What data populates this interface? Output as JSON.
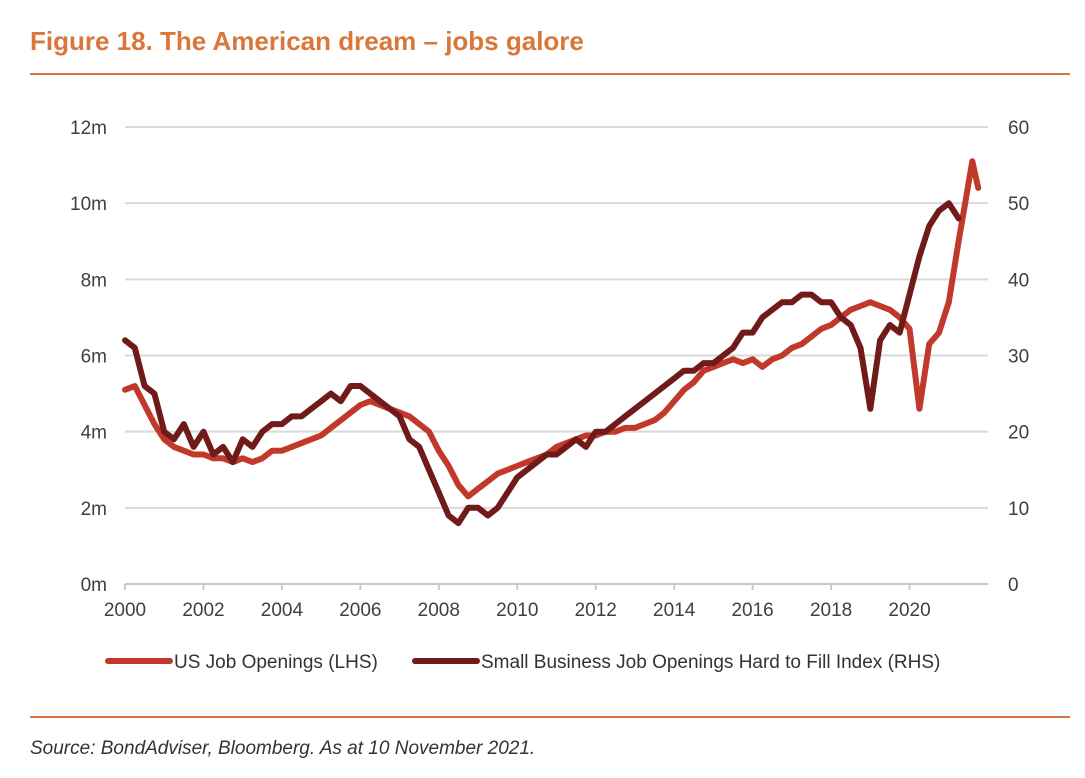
{
  "header": {
    "title": "Figure 18. The American dream – jobs galore"
  },
  "footer": {
    "source": "Source: BondAdviser, Bloomberg. As at 10 November 2021."
  },
  "chart_data": {
    "type": "line",
    "title": "Figure 18. The American dream – jobs galore",
    "xlim": [
      2000,
      2022
    ],
    "x_ticks": [
      "2000",
      "2002",
      "2004",
      "2006",
      "2008",
      "2010",
      "2012",
      "2014",
      "2016",
      "2018",
      "2020"
    ],
    "y_left": {
      "label": "US Job Openings (LHS)",
      "lim": [
        0,
        12
      ],
      "ticks": [
        "0m",
        "2m",
        "4m",
        "6m",
        "8m",
        "10m",
        "12m"
      ]
    },
    "y_right": {
      "label": "Small Business Job Openings Hard to Fill Index (RHS)",
      "lim": [
        0,
        60
      ],
      "ticks": [
        "0",
        "10",
        "20",
        "30",
        "40",
        "50",
        "60"
      ]
    },
    "grid": true,
    "legend_position": "bottom",
    "series": [
      {
        "name": "US Job Openings (LHS)",
        "axis": "left",
        "color": "#c0392b",
        "points": [
          [
            2000.0,
            5.1
          ],
          [
            2000.25,
            5.2
          ],
          [
            2000.5,
            4.7
          ],
          [
            2000.75,
            4.2
          ],
          [
            2001.0,
            3.8
          ],
          [
            2001.25,
            3.6
          ],
          [
            2001.5,
            3.5
          ],
          [
            2001.75,
            3.4
          ],
          [
            2002.0,
            3.4
          ],
          [
            2002.25,
            3.3
          ],
          [
            2002.5,
            3.3
          ],
          [
            2002.75,
            3.2
          ],
          [
            2003.0,
            3.3
          ],
          [
            2003.25,
            3.2
          ],
          [
            2003.5,
            3.3
          ],
          [
            2003.75,
            3.5
          ],
          [
            2004.0,
            3.5
          ],
          [
            2004.25,
            3.6
          ],
          [
            2004.5,
            3.7
          ],
          [
            2004.75,
            3.8
          ],
          [
            2005.0,
            3.9
          ],
          [
            2005.25,
            4.1
          ],
          [
            2005.5,
            4.3
          ],
          [
            2005.75,
            4.5
          ],
          [
            2006.0,
            4.7
          ],
          [
            2006.25,
            4.8
          ],
          [
            2006.5,
            4.7
          ],
          [
            2006.75,
            4.6
          ],
          [
            2007.0,
            4.5
          ],
          [
            2007.25,
            4.4
          ],
          [
            2007.5,
            4.2
          ],
          [
            2007.75,
            4.0
          ],
          [
            2008.0,
            3.5
          ],
          [
            2008.25,
            3.1
          ],
          [
            2008.5,
            2.6
          ],
          [
            2008.75,
            2.3
          ],
          [
            2009.0,
            2.5
          ],
          [
            2009.25,
            2.7
          ],
          [
            2009.5,
            2.9
          ],
          [
            2009.75,
            3.0
          ],
          [
            2010.0,
            3.1
          ],
          [
            2010.25,
            3.2
          ],
          [
            2010.5,
            3.3
          ],
          [
            2010.75,
            3.4
          ],
          [
            2011.0,
            3.6
          ],
          [
            2011.25,
            3.7
          ],
          [
            2011.5,
            3.8
          ],
          [
            2011.75,
            3.9
          ],
          [
            2012.0,
            3.9
          ],
          [
            2012.25,
            4.0
          ],
          [
            2012.5,
            4.0
          ],
          [
            2012.75,
            4.1
          ],
          [
            2013.0,
            4.1
          ],
          [
            2013.25,
            4.2
          ],
          [
            2013.5,
            4.3
          ],
          [
            2013.75,
            4.5
          ],
          [
            2014.0,
            4.8
          ],
          [
            2014.25,
            5.1
          ],
          [
            2014.5,
            5.3
          ],
          [
            2014.75,
            5.6
          ],
          [
            2015.0,
            5.7
          ],
          [
            2015.25,
            5.8
          ],
          [
            2015.5,
            5.9
          ],
          [
            2015.75,
            5.8
          ],
          [
            2016.0,
            5.9
          ],
          [
            2016.25,
            5.7
          ],
          [
            2016.5,
            5.9
          ],
          [
            2016.75,
            6.0
          ],
          [
            2017.0,
            6.2
          ],
          [
            2017.25,
            6.3
          ],
          [
            2017.5,
            6.5
          ],
          [
            2017.75,
            6.7
          ],
          [
            2018.0,
            6.8
          ],
          [
            2018.25,
            7.0
          ],
          [
            2018.5,
            7.2
          ],
          [
            2018.75,
            7.3
          ],
          [
            2019.0,
            7.4
          ],
          [
            2019.25,
            7.3
          ],
          [
            2019.5,
            7.2
          ],
          [
            2019.75,
            7.0
          ],
          [
            2020.0,
            6.7
          ],
          [
            2020.25,
            4.6
          ],
          [
            2020.5,
            6.3
          ],
          [
            2020.75,
            6.6
          ],
          [
            2021.0,
            7.4
          ],
          [
            2021.25,
            9.0
          ],
          [
            2021.5,
            10.5
          ],
          [
            2021.6,
            11.1
          ],
          [
            2021.75,
            10.4
          ]
        ]
      },
      {
        "name": "Small Business Job Openings Hard to Fill Index (RHS)",
        "axis": "right",
        "color": "#701a1a",
        "points": [
          [
            2000.0,
            32
          ],
          [
            2000.25,
            31
          ],
          [
            2000.5,
            26
          ],
          [
            2000.75,
            25
          ],
          [
            2001.0,
            20
          ],
          [
            2001.25,
            19
          ],
          [
            2001.5,
            21
          ],
          [
            2001.75,
            18
          ],
          [
            2002.0,
            20
          ],
          [
            2002.25,
            17
          ],
          [
            2002.5,
            18
          ],
          [
            2002.75,
            16
          ],
          [
            2003.0,
            19
          ],
          [
            2003.25,
            18
          ],
          [
            2003.5,
            20
          ],
          [
            2003.75,
            21
          ],
          [
            2004.0,
            21
          ],
          [
            2004.25,
            22
          ],
          [
            2004.5,
            22
          ],
          [
            2004.75,
            23
          ],
          [
            2005.0,
            24
          ],
          [
            2005.25,
            25
          ],
          [
            2005.5,
            24
          ],
          [
            2005.75,
            26
          ],
          [
            2006.0,
            26
          ],
          [
            2006.25,
            25
          ],
          [
            2006.5,
            24
          ],
          [
            2006.75,
            23
          ],
          [
            2007.0,
            22
          ],
          [
            2007.25,
            19
          ],
          [
            2007.5,
            18
          ],
          [
            2007.75,
            15
          ],
          [
            2008.0,
            12
          ],
          [
            2008.25,
            9
          ],
          [
            2008.5,
            8
          ],
          [
            2008.75,
            10
          ],
          [
            2009.0,
            10
          ],
          [
            2009.25,
            9
          ],
          [
            2009.5,
            10
          ],
          [
            2009.75,
            12
          ],
          [
            2010.0,
            14
          ],
          [
            2010.25,
            15
          ],
          [
            2010.5,
            16
          ],
          [
            2010.75,
            17
          ],
          [
            2011.0,
            17
          ],
          [
            2011.25,
            18
          ],
          [
            2011.5,
            19
          ],
          [
            2011.75,
            18
          ],
          [
            2012.0,
            20
          ],
          [
            2012.25,
            20
          ],
          [
            2012.5,
            21
          ],
          [
            2012.75,
            22
          ],
          [
            2013.0,
            23
          ],
          [
            2013.25,
            24
          ],
          [
            2013.5,
            25
          ],
          [
            2013.75,
            26
          ],
          [
            2014.0,
            27
          ],
          [
            2014.25,
            28
          ],
          [
            2014.5,
            28
          ],
          [
            2014.75,
            29
          ],
          [
            2015.0,
            29
          ],
          [
            2015.25,
            30
          ],
          [
            2015.5,
            31
          ],
          [
            2015.75,
            33
          ],
          [
            2016.0,
            33
          ],
          [
            2016.25,
            35
          ],
          [
            2016.5,
            36
          ],
          [
            2016.75,
            37
          ],
          [
            2017.0,
            37
          ],
          [
            2017.25,
            38
          ],
          [
            2017.5,
            38
          ],
          [
            2017.75,
            37
          ],
          [
            2018.0,
            37
          ],
          [
            2018.25,
            35
          ],
          [
            2018.5,
            34
          ],
          [
            2018.75,
            31
          ],
          [
            2019.0,
            23
          ],
          [
            2019.25,
            32
          ],
          [
            2019.5,
            34
          ],
          [
            2019.75,
            33
          ],
          [
            2020.0,
            38
          ],
          [
            2020.25,
            43
          ],
          [
            2020.5,
            47
          ],
          [
            2020.75,
            49
          ],
          [
            2021.0,
            50
          ],
          [
            2021.25,
            48
          ]
        ]
      }
    ]
  }
}
